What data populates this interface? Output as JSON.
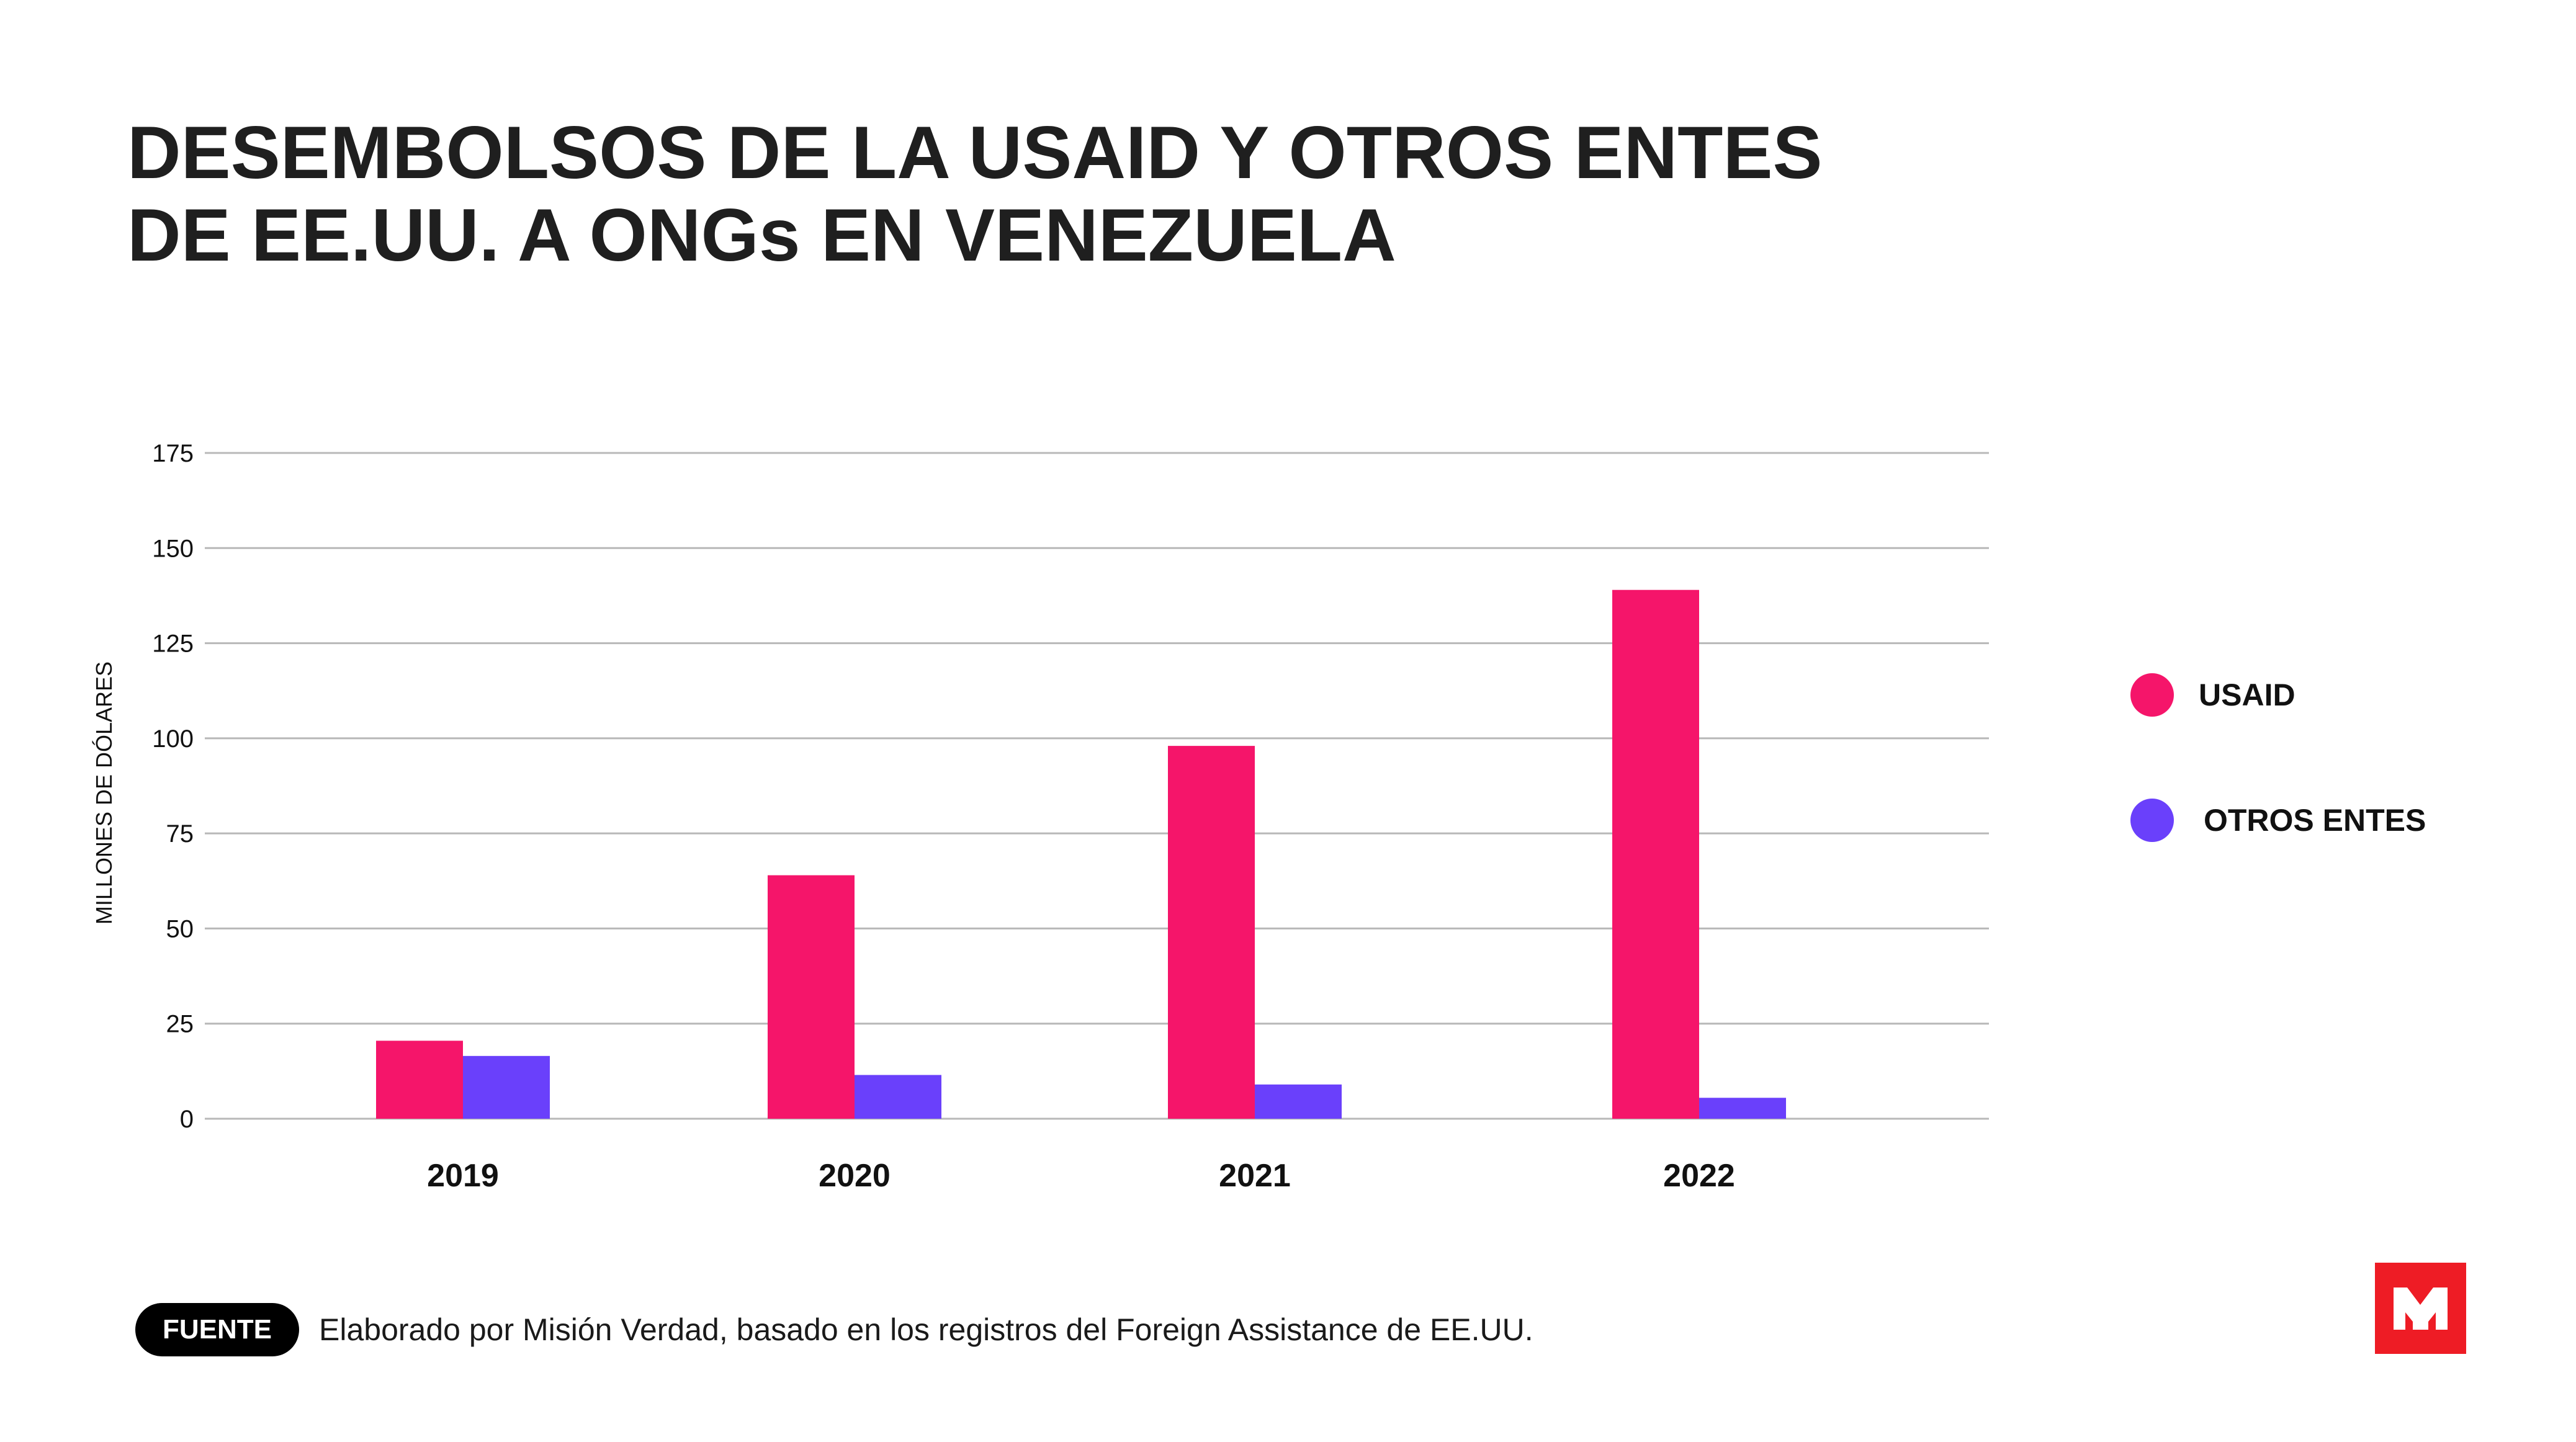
{
  "header": {
    "title_line1": "DESEMBOLSOS DE LA USAID Y OTROS ENTES",
    "title_line2": "DE EE.UU. A ONGs EN VENEZUELA"
  },
  "chart_data": {
    "type": "bar",
    "title": "DESEMBOLSOS DE LA USAID Y OTROS ENTES DE EE.UU. A ONGs EN VENEZUELA",
    "xlabel": "",
    "ylabel": "MILLONES DE DÓLARES",
    "ylim": [
      0,
      175
    ],
    "yticks": [
      0,
      25,
      50,
      75,
      100,
      125,
      150,
      175
    ],
    "grid": true,
    "legend_position": "right",
    "categories": [
      "2019",
      "2020",
      "2021",
      "2022"
    ],
    "series": [
      {
        "name": "USAID",
        "color": "#f5156a",
        "values": [
          20.5,
          64,
          98,
          139
        ]
      },
      {
        "name": "OTROS ENTES",
        "color": "#6a40fb",
        "values": [
          16.5,
          11.5,
          9,
          5.5
        ]
      }
    ]
  },
  "footer": {
    "badge": "FUENTE",
    "text": "Elaborado por Misión Verdad, basado en los registros del Foreign Assistance de EE.UU."
  },
  "branding": {
    "logo_color": "#ee1c25",
    "logo_glyph_color": "#ffffff"
  }
}
